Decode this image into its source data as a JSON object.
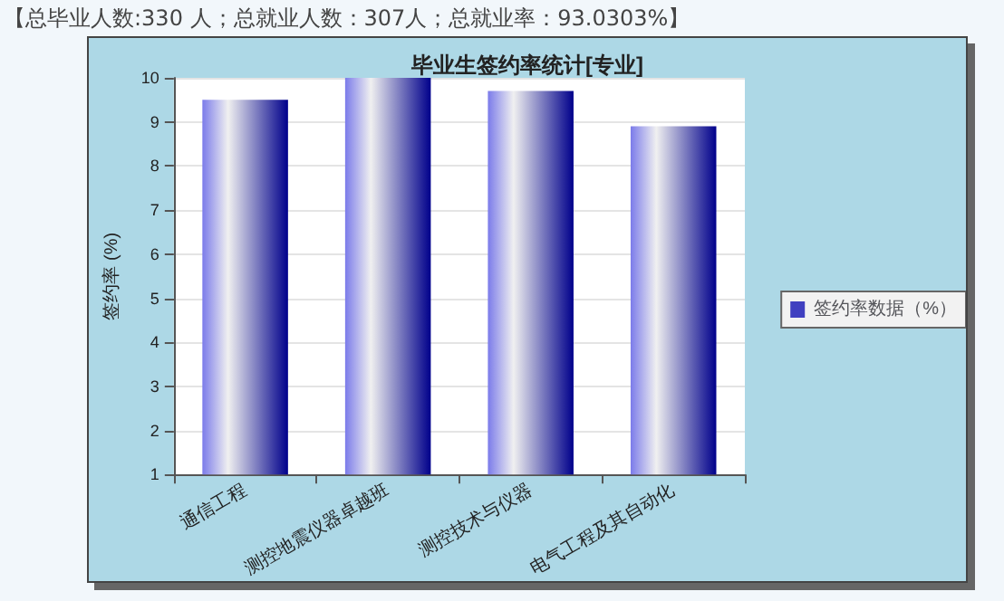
{
  "chart_data": {
    "type": "bar",
    "title": "毕业生签约率统计[专业]",
    "ylabel": "签约率 (%)",
    "annotations": [
      "【总毕业人数:330 人；总就业人数：307人；总就业率：93.0303%】"
    ],
    "categories": [
      "通信工程",
      "测控地震仪器卓越班",
      "测控技术与仪器",
      "电气工程及其自动化"
    ],
    "series": [
      {
        "name": "签约率数据（%）",
        "color": "#00008b",
        "values": [
          9.5,
          10,
          9.7,
          8.9
        ]
      }
    ],
    "ylim": [
      1,
      10
    ],
    "yticks": [
      1,
      2,
      3,
      4,
      5,
      6,
      7,
      8,
      9,
      10
    ],
    "grid": "y",
    "legend": "right"
  }
}
